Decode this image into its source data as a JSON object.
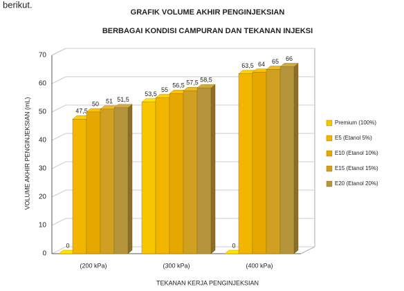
{
  "caption": "berikut.",
  "chart_data": {
    "type": "bar",
    "title": "GRAFIK VOLUME AKHIR PENGINJEKSIAN",
    "subtitle": "BERBAGAI KONDISI CAMPURAN DAN TEKANAN INJEKSI",
    "x_label": "TEKANAN KERJA PENGINJEKSIAN",
    "y_label": "VOLUME AKHIR PENGINJEKSIAN (mL)",
    "categories": [
      "(200 kPa)",
      "(300 kPa)",
      "(400 kPa)"
    ],
    "series": [
      {
        "name": "Premium (100%)",
        "color": "#f7c600",
        "values": [
          0,
          53.5,
          0
        ],
        "value_labels": [
          "0",
          "53,5",
          "0"
        ]
      },
      {
        "name": "E5 (Etanol 5%)",
        "color": "#f2b600",
        "values": [
          47.5,
          55,
          63.5
        ],
        "value_labels": [
          "47,5",
          "55",
          "63,5"
        ]
      },
      {
        "name": "E10 (Etanol 10%)",
        "color": "#e6a800",
        "values": [
          50,
          56.5,
          64
        ],
        "value_labels": [
          "50",
          "56,5",
          "64"
        ]
      },
      {
        "name": "E15 (Etanol 15%)",
        "color": "#cfa022",
        "values": [
          51,
          57.5,
          65
        ],
        "value_labels": [
          "51",
          "57,5",
          "65"
        ]
      },
      {
        "name": "E20 (Etanol 20%)",
        "color": "#b5943c",
        "values": [
          51.5,
          58.5,
          66
        ],
        "value_labels": [
          "51,5",
          "58,5",
          "66"
        ]
      }
    ],
    "ylim": [
      0,
      70
    ],
    "yticks": [
      0,
      10,
      20,
      30,
      40,
      50,
      60,
      70
    ],
    "grid": true,
    "legend": "right"
  }
}
